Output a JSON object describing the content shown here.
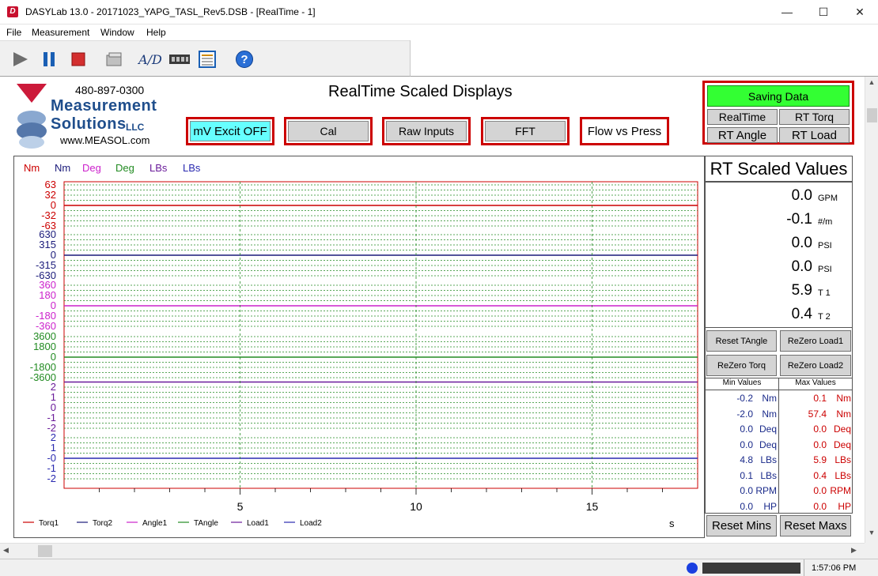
{
  "window": {
    "title": "DASYLab 13.0 - 20171023_YAPG_TASL_Rev5.DSB - [RealTime - 1]",
    "app_icon": "D",
    "minimize_glyph": "—",
    "maximize_glyph": "☐",
    "close_glyph": "✕"
  },
  "menu": [
    "File",
    "Measurement",
    "Window",
    "Help"
  ],
  "toolbar": {
    "icons": [
      "play-icon",
      "pause-icon",
      "stop-icon",
      "folder-icon",
      "ad-converter-icon",
      "hardware-icon",
      "list-icon",
      "help-icon"
    ],
    "ad_label": "A/D",
    "help_label": "?"
  },
  "logo": {
    "phone": "480-897-0300",
    "name_line1": "Measurement",
    "name_line2": "Solutions",
    "llc": "LLC",
    "url": "www.MEASOL.com"
  },
  "display_title": "RealTime Scaled Displays",
  "buttons": {
    "mv_excit": "mV Excit OFF",
    "cal": "Cal",
    "raw_inputs": "Raw Inputs",
    "fft": "FFT",
    "flow_vs_press": "Flow vs Press",
    "saving_data": "Saving Data",
    "realtime": "RealTime",
    "rt_torq": "RT Torq",
    "rt_angle": "RT Angle",
    "rt_load": "RT Load",
    "reset_tangle": "Reset TAngle",
    "rezero_load1": "ReZero Load1",
    "rezero_torq": "ReZero Torq",
    "rezero_load2": "ReZero Load2",
    "reset_mins": "Reset Mins",
    "reset_maxs": "Reset Maxs"
  },
  "colors": {
    "red": "#cc0000",
    "navy": "#1a1a7a",
    "magenta": "#cc22cc",
    "green": "#228b22",
    "purple": "#6a1b9a",
    "blue": "#2a2ab0",
    "saving_green": "#33ff33",
    "mv_cyan": "#66ffff"
  },
  "chart_data": {
    "type": "line",
    "top_legend": [
      {
        "label": "Nm",
        "color": "#cc0000"
      },
      {
        "label": "Nm",
        "color": "#1a1a7a"
      },
      {
        "label": "Deg",
        "color": "#cc22cc"
      },
      {
        "label": "Deg",
        "color": "#228b22"
      },
      {
        "label": "LBs",
        "color": "#6a1b9a"
      },
      {
        "label": "LBs",
        "color": "#2a2ab0"
      }
    ],
    "x_ticks": [
      "5",
      "10",
      "15"
    ],
    "x_unit": "s",
    "xlim": [
      0,
      18
    ],
    "panels": [
      {
        "ticks": [
          "63",
          "32",
          "0",
          "-32",
          "-63"
        ],
        "color": "#cc0000",
        "ylim": [
          -63,
          63
        ],
        "value": 0
      },
      {
        "ticks": [
          "630",
          "315",
          "0",
          "-315",
          "-630"
        ],
        "color": "#1a1a7a",
        "ylim": [
          -630,
          630
        ],
        "value": 0
      },
      {
        "ticks": [
          "360",
          "180",
          "0",
          "-180",
          "-360"
        ],
        "color": "#cc22cc",
        "ylim": [
          -360,
          360
        ],
        "value": 0
      },
      {
        "ticks": [
          "3600",
          "1800",
          "0",
          "-1800",
          "-3600"
        ],
        "color": "#228b22",
        "ylim": [
          -3600,
          3600
        ],
        "value": 0
      },
      {
        "ticks": [
          "2",
          "1",
          "0",
          "-1",
          "-2"
        ],
        "color": "#6a1b9a",
        "ylim": [
          -2,
          2
        ],
        "value": 2.5
      },
      {
        "ticks": [
          "2",
          "1",
          "-0",
          "-1",
          "-2"
        ],
        "color": "#2a2ab0",
        "ylim": [
          -2,
          2
        ],
        "value": 0
      }
    ],
    "series": [
      {
        "name": "Torq1",
        "color": "#cc0000"
      },
      {
        "name": "Torq2",
        "color": "#1a1a7a"
      },
      {
        "name": "Angle1",
        "color": "#cc22cc"
      },
      {
        "name": "TAngle",
        "color": "#228b22"
      },
      {
        "name": "Load1",
        "color": "#6a1b9a"
      },
      {
        "name": "Load2",
        "color": "#2a2ab0"
      }
    ]
  },
  "rt_scaled": {
    "title": "RT Scaled Values",
    "rows": [
      {
        "value": "0.0",
        "unit": "GPM"
      },
      {
        "value": "-0.1",
        "unit": "#/m"
      },
      {
        "value": "0.0",
        "unit": "PSI"
      },
      {
        "value": "0.0",
        "unit": "PSI"
      },
      {
        "value": "5.9",
        "unit": "T 1"
      },
      {
        "value": "0.4",
        "unit": "T 2"
      }
    ]
  },
  "minmax": {
    "min_header": "Min Values",
    "max_header": "Max Values",
    "rows": [
      {
        "min": "-0.2",
        "min_unit": "Nm",
        "max": "0.1",
        "max_unit": "Nm"
      },
      {
        "min": "-2.0",
        "min_unit": "Nm",
        "max": "57.4",
        "max_unit": "Nm"
      },
      {
        "min": "0.0",
        "min_unit": "Deq",
        "max": "0.0",
        "max_unit": "Deq"
      },
      {
        "min": "0.0",
        "min_unit": "Deq",
        "max": "0.0",
        "max_unit": "Deq"
      },
      {
        "min": "4.8",
        "min_unit": "LBs",
        "max": "5.9",
        "max_unit": "LBs"
      },
      {
        "min": "0.1",
        "min_unit": "LBs",
        "max": "0.4",
        "max_unit": "LBs"
      },
      {
        "min": "0.0",
        "min_unit": "RPM",
        "max": "0.0",
        "max_unit": "RPM"
      },
      {
        "min": "0.0",
        "min_unit": "HP",
        "max": "0.0",
        "max_unit": "HP"
      }
    ]
  },
  "status": {
    "time": "1:57:06 PM"
  }
}
